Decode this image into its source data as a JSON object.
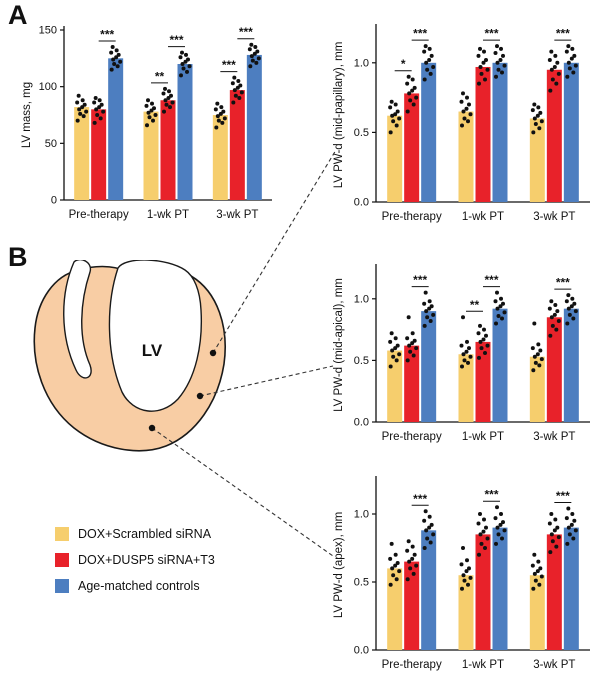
{
  "panels": {
    "a": "A",
    "b": "B"
  },
  "colors": {
    "yellow": "#F6CE6D",
    "red": "#E8222A",
    "blue": "#4D7EC0",
    "dot": "#111111",
    "heart_wall": "#F8CDA4"
  },
  "diagram": {
    "label": "LV"
  },
  "legend": {
    "items": [
      {
        "label": "DOX+Scrambled siRNA",
        "color_key": "yellow"
      },
      {
        "label": "DOX+DUSP5 siRNA+T3",
        "color_key": "red"
      },
      {
        "label": "Age-matched controls",
        "color_key": "blue"
      }
    ]
  },
  "chart_data": [
    {
      "id": "lv-mass",
      "type": "bar",
      "title": "",
      "ylabel": "LV mass, mg",
      "ylim": [
        0,
        150
      ],
      "yticks": [
        0,
        50,
        100,
        150
      ],
      "tick_decimals": 0,
      "categories": [
        "Pre-therapy",
        "1-wk PT",
        "3-wk PT"
      ],
      "series": [
        {
          "name": "DOX+Scrambled siRNA",
          "color_key": "yellow",
          "means": [
            82,
            78,
            75
          ],
          "points": [
            [
              70,
              74,
              76,
              78,
              80,
              82,
              84,
              86,
              88,
              92
            ],
            [
              66,
              70,
              73,
              75,
              77,
              79,
              81,
              83,
              85,
              88
            ],
            [
              64,
              68,
              70,
              72,
              74,
              76,
              78,
              80,
              82,
              85
            ]
          ]
        },
        {
          "name": "DOX+DUSP5 siRNA+T3",
          "color_key": "red",
          "means": [
            80,
            88,
            97
          ],
          "points": [
            [
              68,
              72,
              75,
              78,
              80,
              82,
              84,
              86,
              88,
              90
            ],
            [
              78,
              82,
              84,
              86,
              88,
              90,
              92,
              94,
              96,
              98
            ],
            [
              86,
              90,
              92,
              95,
              97,
              99,
              101,
              103,
              105,
              108
            ]
          ]
        },
        {
          "name": "Age-matched controls",
          "color_key": "blue",
          "means": [
            125,
            120,
            128
          ],
          "points": [
            [
              115,
              118,
              120,
              122,
              124,
              126,
              128,
              130,
              132,
              135
            ],
            [
              110,
              113,
              116,
              118,
              120,
              122,
              124,
              126,
              128,
              130
            ],
            [
              118,
              121,
              123,
              125,
              127,
              129,
              131,
              133,
              135,
              137
            ]
          ]
        }
      ],
      "significance": [
        {
          "low": null,
          "high": "***"
        },
        {
          "low": "**",
          "high": "***"
        },
        {
          "low": "***",
          "high": "***"
        }
      ]
    },
    {
      "id": "pw-mid-papillary",
      "type": "bar",
      "title": "",
      "ylabel": "LV PW-d (mid-papillary), mm",
      "ylim": [
        0,
        1.25
      ],
      "yticks": [
        0,
        0.5,
        1.0
      ],
      "tick_decimals": 1,
      "categories": [
        "Pre-therapy",
        "1-wk PT",
        "3-wk PT"
      ],
      "series": [
        {
          "name": "DOX+Scrambled siRNA",
          "color_key": "yellow",
          "means": [
            0.62,
            0.65,
            0.6
          ],
          "points": [
            [
              0.5,
              0.55,
              0.58,
              0.6,
              0.62,
              0.63,
              0.65,
              0.68,
              0.7,
              0.72
            ],
            [
              0.55,
              0.58,
              0.6,
              0.63,
              0.65,
              0.67,
              0.7,
              0.72,
              0.75,
              0.78
            ],
            [
              0.5,
              0.53,
              0.56,
              0.58,
              0.6,
              0.62,
              0.64,
              0.66,
              0.68,
              0.7
            ]
          ]
        },
        {
          "name": "DOX+DUSP5 siRNA+T3",
          "color_key": "red",
          "means": [
            0.78,
            0.97,
            0.95
          ],
          "points": [
            [
              0.65,
              0.7,
              0.73,
              0.75,
              0.78,
              0.8,
              0.82,
              0.85,
              0.88,
              0.9
            ],
            [
              0.85,
              0.88,
              0.92,
              0.95,
              0.97,
              1.0,
              1.02,
              1.05,
              1.08,
              1.1
            ],
            [
              0.8,
              0.85,
              0.88,
              0.92,
              0.95,
              0.97,
              1.0,
              1.02,
              1.05,
              1.08
            ]
          ]
        },
        {
          "name": "Age-matched controls",
          "color_key": "blue",
          "means": [
            1.0,
            1.0,
            1.0
          ],
          "points": [
            [
              0.88,
              0.92,
              0.95,
              0.97,
              1.0,
              1.02,
              1.05,
              1.08,
              1.1,
              1.12
            ],
            [
              0.9,
              0.93,
              0.95,
              0.98,
              1.0,
              1.02,
              1.05,
              1.07,
              1.1,
              1.12
            ],
            [
              0.9,
              0.93,
              0.96,
              0.98,
              1.0,
              1.03,
              1.05,
              1.08,
              1.1,
              1.12
            ]
          ]
        }
      ],
      "significance": [
        {
          "low": "*",
          "high": "***"
        },
        {
          "low": null,
          "high": "***"
        },
        {
          "low": null,
          "high": "***"
        }
      ]
    },
    {
      "id": "pw-mid-apical",
      "type": "bar",
      "title": "",
      "ylabel": "LV PW-d (mid-apical), mm",
      "ylim": [
        0,
        1.25
      ],
      "yticks": [
        0,
        0.5,
        1.0
      ],
      "tick_decimals": 1,
      "categories": [
        "Pre-therapy",
        "1-wk PT",
        "3-wk PT"
      ],
      "series": [
        {
          "name": "DOX+Scrambled siRNA",
          "color_key": "yellow",
          "means": [
            0.58,
            0.55,
            0.53
          ],
          "points": [
            [
              0.45,
              0.5,
              0.53,
              0.55,
              0.58,
              0.6,
              0.62,
              0.65,
              0.68,
              0.72
            ],
            [
              0.45,
              0.48,
              0.5,
              0.53,
              0.55,
              0.57,
              0.6,
              0.62,
              0.65,
              0.85
            ],
            [
              0.42,
              0.46,
              0.48,
              0.51,
              0.53,
              0.55,
              0.58,
              0.6,
              0.63,
              0.8
            ]
          ]
        },
        {
          "name": "DOX+DUSP5 siRNA+T3",
          "color_key": "red",
          "means": [
            0.62,
            0.65,
            0.85
          ],
          "points": [
            [
              0.5,
              0.54,
              0.57,
              0.6,
              0.62,
              0.64,
              0.66,
              0.68,
              0.72,
              0.85
            ],
            [
              0.52,
              0.56,
              0.6,
              0.62,
              0.65,
              0.67,
              0.7,
              0.72,
              0.75,
              0.78
            ],
            [
              0.7,
              0.75,
              0.78,
              0.82,
              0.85,
              0.87,
              0.9,
              0.92,
              0.95,
              0.98
            ]
          ]
        },
        {
          "name": "Age-matched controls",
          "color_key": "blue",
          "means": [
            0.9,
            0.92,
            0.92
          ],
          "points": [
            [
              0.78,
              0.82,
              0.85,
              0.87,
              0.9,
              0.92,
              0.94,
              0.96,
              0.98,
              1.05
            ],
            [
              0.8,
              0.84,
              0.86,
              0.89,
              0.92,
              0.94,
              0.96,
              0.98,
              1.0,
              1.05
            ],
            [
              0.8,
              0.84,
              0.87,
              0.9,
              0.92,
              0.94,
              0.96,
              0.98,
              1.0,
              1.03
            ]
          ]
        }
      ],
      "significance": [
        {
          "low": null,
          "high": "***"
        },
        {
          "low": "**",
          "high": "***"
        },
        {
          "low": null,
          "high": "***"
        }
      ]
    },
    {
      "id": "pw-apex",
      "type": "bar",
      "title": "",
      "ylabel": "LV PW-d (apex), mm",
      "ylim": [
        0,
        1.25
      ],
      "yticks": [
        0,
        0.5,
        1.0
      ],
      "tick_decimals": 1,
      "categories": [
        "Pre-therapy",
        "1-wk PT",
        "3-wk PT"
      ],
      "series": [
        {
          "name": "DOX+Scrambled siRNA",
          "color_key": "yellow",
          "means": [
            0.6,
            0.55,
            0.55
          ],
          "points": [
            [
              0.48,
              0.52,
              0.55,
              0.58,
              0.6,
              0.62,
              0.64,
              0.67,
              0.7,
              0.78
            ],
            [
              0.45,
              0.48,
              0.51,
              0.53,
              0.55,
              0.58,
              0.6,
              0.63,
              0.66,
              0.75
            ],
            [
              0.45,
              0.48,
              0.51,
              0.54,
              0.56,
              0.58,
              0.6,
              0.62,
              0.65,
              0.7
            ]
          ]
        },
        {
          "name": "DOX+DUSP5 siRNA+T3",
          "color_key": "red",
          "means": [
            0.65,
            0.85,
            0.85
          ],
          "points": [
            [
              0.52,
              0.56,
              0.6,
              0.62,
              0.65,
              0.67,
              0.7,
              0.73,
              0.76,
              0.8
            ],
            [
              0.7,
              0.75,
              0.78,
              0.82,
              0.85,
              0.87,
              0.9,
              0.93,
              0.96,
              1.0
            ],
            [
              0.72,
              0.76,
              0.8,
              0.83,
              0.85,
              0.88,
              0.9,
              0.93,
              0.96,
              1.0
            ]
          ]
        },
        {
          "name": "Age-matched controls",
          "color_key": "blue",
          "means": [
            0.88,
            0.9,
            0.9
          ],
          "points": [
            [
              0.75,
              0.79,
              0.82,
              0.85,
              0.88,
              0.9,
              0.92,
              0.95,
              0.98,
              1.02
            ],
            [
              0.78,
              0.82,
              0.85,
              0.88,
              0.9,
              0.92,
              0.94,
              0.97,
              1.0,
              1.05
            ],
            [
              0.78,
              0.82,
              0.85,
              0.88,
              0.9,
              0.92,
              0.95,
              0.97,
              1.0,
              1.04
            ]
          ]
        }
      ],
      "significance": [
        {
          "low": null,
          "high": "***"
        },
        {
          "low": null,
          "high": "***"
        },
        {
          "low": null,
          "high": "***"
        }
      ]
    }
  ]
}
